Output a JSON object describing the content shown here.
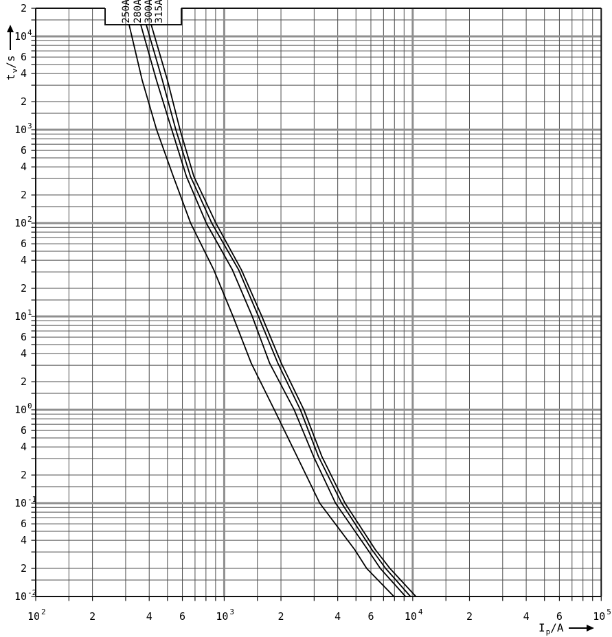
{
  "chart_data": {
    "type": "line",
    "title": "",
    "description": "Fuse melting time-current characteristic curves, log-log scale",
    "x_axis": {
      "label": "Ip/A",
      "label_parts": {
        "symbol": "I",
        "subscript": "p",
        "unit": "/A"
      },
      "scale": "log",
      "range": [
        100,
        100000
      ],
      "ticks": [
        {
          "value": 100,
          "text": "10",
          "exp": "2"
        },
        {
          "value": 200,
          "text": "2"
        },
        {
          "value": 400,
          "text": "4"
        },
        {
          "value": 600,
          "text": "6"
        },
        {
          "value": 1000,
          "text": "10",
          "exp": "3"
        },
        {
          "value": 2000,
          "text": "2"
        },
        {
          "value": 4000,
          "text": "4"
        },
        {
          "value": 6000,
          "text": "6"
        },
        {
          "value": 10000,
          "text": "10",
          "exp": "4"
        },
        {
          "value": 20000,
          "text": "2"
        },
        {
          "value": 40000,
          "text": "4"
        },
        {
          "value": 60000,
          "text": "6"
        },
        {
          "value": 100000,
          "text": "10",
          "exp": "5"
        }
      ]
    },
    "y_axis": {
      "label": "tv/s",
      "label_parts": {
        "symbol": "t",
        "subscript": "v",
        "unit": "/s"
      },
      "scale": "log",
      "range": [
        0.01,
        20000
      ],
      "ticks": [
        {
          "value": 20000,
          "text": "2"
        },
        {
          "value": 10000,
          "text": "10",
          "exp": "4"
        },
        {
          "value": 6000,
          "text": "6"
        },
        {
          "value": 4000,
          "text": "4"
        },
        {
          "value": 2000,
          "text": "2"
        },
        {
          "value": 1000,
          "text": "10",
          "exp": "3"
        },
        {
          "value": 600,
          "text": "6"
        },
        {
          "value": 400,
          "text": "4"
        },
        {
          "value": 200,
          "text": "2"
        },
        {
          "value": 100,
          "text": "10",
          "exp": "2"
        },
        {
          "value": 60,
          "text": "6"
        },
        {
          "value": 40,
          "text": "4"
        },
        {
          "value": 20,
          "text": "2"
        },
        {
          "value": 10,
          "text": "10",
          "exp": "1"
        },
        {
          "value": 6,
          "text": "6"
        },
        {
          "value": 4,
          "text": "4"
        },
        {
          "value": 2,
          "text": "2"
        },
        {
          "value": 1,
          "text": "10",
          "exp": "0"
        },
        {
          "value": 0.6,
          "text": "6"
        },
        {
          "value": 0.4,
          "text": "4"
        },
        {
          "value": 0.2,
          "text": "2"
        },
        {
          "value": 0.1,
          "text": "10",
          "exp": "-1"
        },
        {
          "value": 0.06,
          "text": "6"
        },
        {
          "value": 0.04,
          "text": "4"
        },
        {
          "value": 0.02,
          "text": "2"
        },
        {
          "value": 0.01,
          "text": "10",
          "exp": "-2"
        }
      ]
    },
    "grid": {
      "minor_multipliers": [
        1.5,
        2,
        3,
        4,
        5,
        6,
        7,
        8,
        9
      ],
      "minor_color": "#4d4d4d",
      "major_color": "#8f8f8f",
      "frame_color": "#111111"
    },
    "legend": {
      "position": "top-notch"
    },
    "curve_color": "#000000",
    "series": [
      {
        "label": "250A",
        "points": [
          [
            313,
            13300
          ],
          [
            367,
            3390
          ],
          [
            438,
            1000
          ],
          [
            537,
            316
          ],
          [
            663,
            100
          ],
          [
            880,
            31.6
          ],
          [
            1114,
            10
          ],
          [
            1390,
            3.16
          ],
          [
            1845,
            1
          ],
          [
            2434,
            0.316
          ],
          [
            3212,
            0.1
          ],
          [
            4930,
            0.0316
          ],
          [
            5700,
            0.02
          ],
          [
            7950,
            0.01
          ]
        ]
      },
      {
        "label": "280A",
        "points": [
          [
            361,
            13300
          ],
          [
            437,
            3390
          ],
          [
            527,
            1000
          ],
          [
            630,
            316
          ],
          [
            803,
            100
          ],
          [
            1105,
            31.6
          ],
          [
            1409,
            10
          ],
          [
            1741,
            3.16
          ],
          [
            2350,
            1
          ],
          [
            2977,
            0.316
          ],
          [
            3894,
            0.1
          ],
          [
            5780,
            0.0316
          ],
          [
            6730,
            0.02
          ],
          [
            9160,
            0.01
          ]
        ]
      },
      {
        "label": "300A",
        "points": [
          [
            386,
            13300
          ],
          [
            470,
            3390
          ],
          [
            554,
            1000
          ],
          [
            662,
            316
          ],
          [
            859,
            100
          ],
          [
            1192,
            31.6
          ],
          [
            1520,
            10
          ],
          [
            1925,
            3.16
          ],
          [
            2535,
            1
          ],
          [
            3160,
            0.316
          ],
          [
            4198,
            0.1
          ],
          [
            6080,
            0.0316
          ],
          [
            7190,
            0.02
          ],
          [
            9730,
            0.01
          ]
        ]
      },
      {
        "label": "315A",
        "points": [
          [
            410,
            13300
          ],
          [
            500,
            3390
          ],
          [
            583,
            1000
          ],
          [
            690,
            316
          ],
          [
            903,
            100
          ],
          [
            1233,
            31.6
          ],
          [
            1585,
            10
          ],
          [
            2008,
            3.16
          ],
          [
            2645,
            1
          ],
          [
            3296,
            0.316
          ],
          [
            4375,
            0.1
          ],
          [
            6340,
            0.0316
          ],
          [
            7570,
            0.02
          ],
          [
            10400,
            0.01
          ]
        ]
      }
    ]
  }
}
